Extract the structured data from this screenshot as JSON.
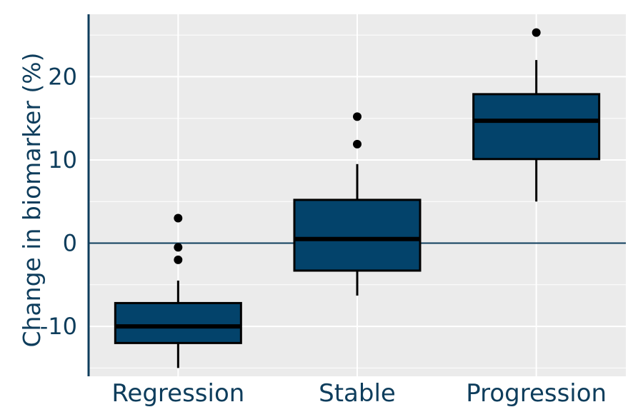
{
  "chart_data": {
    "type": "boxplot",
    "title": "",
    "xlabel": "",
    "ylabel": "Change in biomarker (%)",
    "ylim": [
      -16,
      27.5
    ],
    "yticks": [
      -10,
      0,
      10,
      20
    ],
    "grid": true,
    "reference_line": 0,
    "categories": [
      "Regression",
      "Stable",
      "Progression"
    ],
    "series": [
      {
        "category": "Regression",
        "whisker_low": -15,
        "q1": -12,
        "median": -10,
        "q3": -7.2,
        "whisker_high": -4.5,
        "outliers": [
          3,
          -0.5,
          -2
        ]
      },
      {
        "category": "Stable",
        "whisker_low": -6.3,
        "q1": -3.3,
        "median": 0.5,
        "q3": 5.2,
        "whisker_high": 9.5,
        "outliers": [
          15.2,
          11.9
        ]
      },
      {
        "category": "Progression",
        "whisker_low": 5,
        "q1": 10.1,
        "median": 14.7,
        "q3": 17.9,
        "whisker_high": 22,
        "outliers": [
          25.3
        ]
      }
    ],
    "colors": {
      "box_fill": "#03436b",
      "box_stroke": "#000000",
      "median": "#000000",
      "panel": "#ebebeb",
      "grid": "#ffffff",
      "axis": "#0e3d5c",
      "text": "#0e3d5c"
    }
  }
}
